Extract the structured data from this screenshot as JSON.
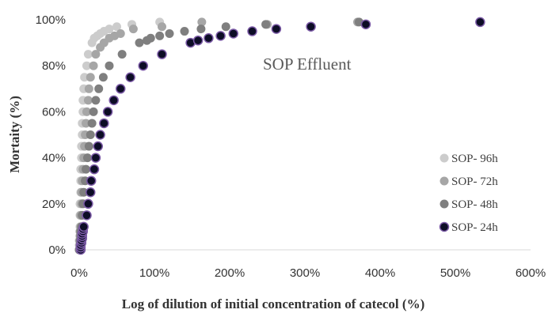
{
  "chart_data": {
    "type": "scatter",
    "annotation": "SOP Effluent",
    "xlabel": "Log of dilution of initial concentration of catecol  (%)",
    "ylabel": "Mortaity (%)",
    "xlim": [
      0,
      6
    ],
    "ylim": [
      0,
      1
    ],
    "x_ticks": [
      "0%",
      "100%",
      "200%",
      "300%",
      "400%",
      "500%",
      "600%"
    ],
    "y_ticks": [
      "0%",
      "20%",
      "40%",
      "60%",
      "80%",
      "100%"
    ],
    "grid": false,
    "legend_position": "bottom-right",
    "series": [
      {
        "name": "SOP- 96h",
        "color": "#cccccc",
        "points": [
          [
            0.0,
            0.0
          ],
          [
            0.0,
            0.02
          ],
          [
            0.0,
            0.04
          ],
          [
            0.01,
            0.06
          ],
          [
            0.01,
            0.08
          ],
          [
            0.01,
            0.1
          ],
          [
            0.01,
            0.15
          ],
          [
            0.01,
            0.2
          ],
          [
            0.02,
            0.25
          ],
          [
            0.02,
            0.3
          ],
          [
            0.02,
            0.35
          ],
          [
            0.03,
            0.4
          ],
          [
            0.03,
            0.45
          ],
          [
            0.04,
            0.5
          ],
          [
            0.04,
            0.55
          ],
          [
            0.05,
            0.6
          ],
          [
            0.05,
            0.65
          ],
          [
            0.06,
            0.7
          ],
          [
            0.07,
            0.75
          ],
          [
            0.1,
            0.8
          ],
          [
            0.12,
            0.85
          ],
          [
            0.17,
            0.9
          ],
          [
            0.2,
            0.92
          ],
          [
            0.24,
            0.93
          ],
          [
            0.28,
            0.94
          ],
          [
            0.33,
            0.95
          ],
          [
            0.4,
            0.96
          ],
          [
            0.5,
            0.97
          ],
          [
            0.7,
            0.98
          ],
          [
            1.07,
            0.99
          ]
        ]
      },
      {
        "name": "SOP- 72h",
        "color": "#a6a6a6",
        "points": [
          [
            0.0,
            0.0
          ],
          [
            0.01,
            0.02
          ],
          [
            0.01,
            0.04
          ],
          [
            0.01,
            0.06
          ],
          [
            0.01,
            0.08
          ],
          [
            0.02,
            0.1
          ],
          [
            0.02,
            0.15
          ],
          [
            0.03,
            0.2
          ],
          [
            0.03,
            0.25
          ],
          [
            0.04,
            0.3
          ],
          [
            0.05,
            0.35
          ],
          [
            0.06,
            0.4
          ],
          [
            0.07,
            0.45
          ],
          [
            0.08,
            0.5
          ],
          [
            0.09,
            0.55
          ],
          [
            0.1,
            0.6
          ],
          [
            0.12,
            0.65
          ],
          [
            0.13,
            0.7
          ],
          [
            0.15,
            0.75
          ],
          [
            0.19,
            0.8
          ],
          [
            0.22,
            0.85
          ],
          [
            0.28,
            0.88
          ],
          [
            0.33,
            0.9
          ],
          [
            0.4,
            0.92
          ],
          [
            0.47,
            0.93
          ],
          [
            0.55,
            0.94
          ],
          [
            0.72,
            0.96
          ],
          [
            1.1,
            0.97
          ],
          [
            1.63,
            0.99
          ],
          [
            2.5,
            0.98
          ],
          [
            3.7,
            0.99
          ]
        ]
      },
      {
        "name": "SOP- 48h",
        "color": "#7f7f7f",
        "points": [
          [
            0.0,
            0.0
          ],
          [
            0.01,
            0.02
          ],
          [
            0.01,
            0.04
          ],
          [
            0.02,
            0.06
          ],
          [
            0.02,
            0.08
          ],
          [
            0.03,
            0.1
          ],
          [
            0.04,
            0.15
          ],
          [
            0.05,
            0.2
          ],
          [
            0.06,
            0.25
          ],
          [
            0.08,
            0.3
          ],
          [
            0.09,
            0.35
          ],
          [
            0.11,
            0.4
          ],
          [
            0.13,
            0.45
          ],
          [
            0.15,
            0.5
          ],
          [
            0.17,
            0.55
          ],
          [
            0.19,
            0.6
          ],
          [
            0.22,
            0.65
          ],
          [
            0.26,
            0.7
          ],
          [
            0.32,
            0.75
          ],
          [
            0.4,
            0.8
          ],
          [
            0.57,
            0.85
          ],
          [
            0.8,
            0.9
          ],
          [
            0.9,
            0.91
          ],
          [
            0.95,
            0.92
          ],
          [
            1.07,
            0.93
          ],
          [
            1.2,
            0.94
          ],
          [
            1.4,
            0.95
          ],
          [
            1.62,
            0.96
          ],
          [
            1.95,
            0.97
          ],
          [
            2.48,
            0.98
          ],
          [
            3.72,
            0.99
          ]
        ]
      },
      {
        "name": "SOP- 24h",
        "color": "#0d0d26",
        "points": [
          [
            0.02,
            0.0
          ],
          [
            0.02,
            0.01
          ],
          [
            0.02,
            0.02
          ],
          [
            0.03,
            0.03
          ],
          [
            0.03,
            0.04
          ],
          [
            0.04,
            0.05
          ],
          [
            0.04,
            0.06
          ],
          [
            0.04,
            0.07
          ],
          [
            0.05,
            0.08
          ],
          [
            0.05,
            0.09
          ],
          [
            0.06,
            0.1
          ],
          [
            0.1,
            0.15
          ],
          [
            0.12,
            0.2
          ],
          [
            0.15,
            0.25
          ],
          [
            0.16,
            0.3
          ],
          [
            0.2,
            0.35
          ],
          [
            0.22,
            0.4
          ],
          [
            0.25,
            0.45
          ],
          [
            0.28,
            0.5
          ],
          [
            0.33,
            0.55
          ],
          [
            0.38,
            0.6
          ],
          [
            0.46,
            0.65
          ],
          [
            0.55,
            0.7
          ],
          [
            0.68,
            0.75
          ],
          [
            0.85,
            0.8
          ],
          [
            1.1,
            0.85
          ],
          [
            1.48,
            0.9
          ],
          [
            1.58,
            0.91
          ],
          [
            1.72,
            0.92
          ],
          [
            1.88,
            0.93
          ],
          [
            2.05,
            0.94
          ],
          [
            2.3,
            0.95
          ],
          [
            2.62,
            0.96
          ],
          [
            3.08,
            0.97
          ],
          [
            3.81,
            0.98
          ],
          [
            5.33,
            0.99
          ]
        ]
      }
    ]
  }
}
